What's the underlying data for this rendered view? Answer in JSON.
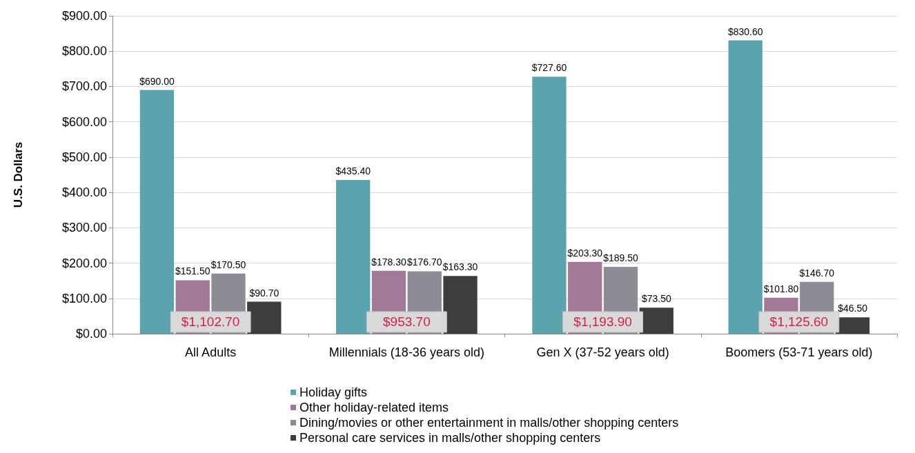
{
  "chart_data": {
    "type": "bar",
    "ylabel": "U.S. Dollars",
    "categories": [
      "All Adults",
      "Millennials (18-36 years old)",
      "Gen X (37-52 years old)",
      "Boomers (53-71 years old)"
    ],
    "series": [
      {
        "name": "Holiday gifts",
        "color": "#5ba3ad",
        "values": [
          690.0,
          435.4,
          727.6,
          830.6
        ],
        "value_labels": [
          "$690.00",
          "$435.40",
          "$727.60",
          "$830.60"
        ]
      },
      {
        "name": "Other holiday-related items",
        "color": "#a07a96",
        "values": [
          151.5,
          178.3,
          203.3,
          101.8
        ],
        "value_labels": [
          "$151.50",
          "$178.30",
          "$203.30",
          "$101.80"
        ]
      },
      {
        "name": "Dining/movies or other entertainment in malls/other shopping centers",
        "color": "#8f8b95",
        "values": [
          170.5,
          176.7,
          189.5,
          146.7
        ],
        "value_labels": [
          "$170.50",
          "$176.70",
          "$189.50",
          "$146.70"
        ]
      },
      {
        "name": "Personal care services in malls/other shopping centers",
        "color": "#3b3e3d",
        "values": [
          90.7,
          163.3,
          73.5,
          46.5
        ],
        "value_labels": [
          "$90.70",
          "$163.30",
          "$73.50",
          "$46.50"
        ]
      }
    ],
    "totals": [
      "$1,102.70",
      "$953.70",
      "$1,193.90",
      "$1,125.60"
    ],
    "ylim": [
      0,
      900
    ],
    "yticks": [
      {
        "value": 0,
        "label": "$0.00"
      },
      {
        "value": 100,
        "label": "$100.00"
      },
      {
        "value": 200,
        "label": "$200.00"
      },
      {
        "value": 300,
        "label": "$300.00"
      },
      {
        "value": 400,
        "label": "$400.00"
      },
      {
        "value": 500,
        "label": "$500.00"
      },
      {
        "value": 600,
        "label": "$600.00"
      },
      {
        "value": 700,
        "label": "$700.00"
      },
      {
        "value": 800,
        "label": "$800.00"
      },
      {
        "value": 900,
        "label": "$900.00"
      }
    ],
    "grid": "y",
    "legend": "bottom"
  }
}
